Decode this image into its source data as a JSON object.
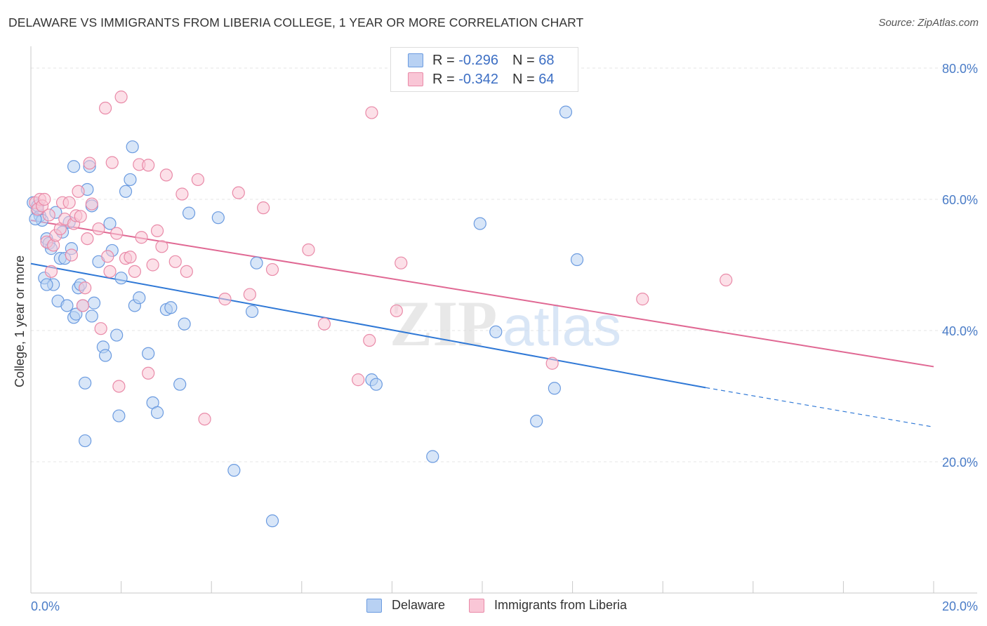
{
  "header": {
    "title": "DELAWARE VS IMMIGRANTS FROM LIBERIA COLLEGE, 1 YEAR OR MORE CORRELATION CHART",
    "source": "Source: ZipAtlas.com"
  },
  "legend_box": {
    "rows": [
      {
        "r_label": "R = ",
        "r_value": "-0.296",
        "n_label": "N = ",
        "n_value": "68"
      },
      {
        "r_label": "R = ",
        "r_value": "-0.342",
        "n_label": "N = ",
        "n_value": "64"
      }
    ]
  },
  "bottom_legend": [
    "Delaware",
    "Immigrants from Liberia"
  ],
  "watermark": {
    "zip": "ZIP",
    "atlas": "atlas"
  },
  "colors": {
    "delaware_fill": "#b8d1f3",
    "delaware_stroke": "#6b9be0",
    "delaware_line": "#2f78d6",
    "liberia_fill": "#f9c6d6",
    "liberia_stroke": "#e98aa8",
    "liberia_line": "#e06893",
    "tick_text": "#4a7cc7",
    "grid": "#e5e5e5"
  },
  "chart_data": {
    "type": "scatter",
    "title": "DELAWARE VS IMMIGRANTS FROM LIBERIA COLLEGE, 1 YEAR OR MORE CORRELATION CHART",
    "xlabel": "",
    "ylabel": "College, 1 year or more",
    "xlim": [
      0,
      20
    ],
    "ylim": [
      0,
      84
    ],
    "x_tick_labels": [
      "0.0%",
      "20.0%"
    ],
    "y_ticks": [
      20,
      40,
      60,
      80
    ],
    "y_tick_labels": [
      "20.0%",
      "40.0%",
      "60.0%",
      "80.0%"
    ],
    "grid": true,
    "legend_position": "top-center",
    "series": [
      {
        "name": "Delaware",
        "r": -0.296,
        "n": 68,
        "trend": {
          "x0": 0,
          "y0": 50.2,
          "x1": 14.95,
          "y1": 31.3,
          "dashed_to_x": 20,
          "dashed_to_y": 25.3
        },
        "points": [
          [
            0.05,
            59.5
          ],
          [
            0.15,
            58.3
          ],
          [
            0.2,
            57.5
          ],
          [
            0.25,
            56.8
          ],
          [
            0.3,
            48.0
          ],
          [
            0.35,
            54.0
          ],
          [
            0.4,
            53.3
          ],
          [
            0.45,
            52.5
          ],
          [
            0.5,
            47.0
          ],
          [
            0.55,
            58.0
          ],
          [
            0.6,
            44.5
          ],
          [
            0.65,
            51.0
          ],
          [
            0.7,
            55.0
          ],
          [
            0.75,
            51.0
          ],
          [
            0.8,
            43.8
          ],
          [
            0.85,
            56.5
          ],
          [
            0.9,
            52.5
          ],
          [
            0.95,
            42.0
          ],
          [
            1.0,
            42.5
          ],
          [
            1.05,
            46.5
          ],
          [
            1.1,
            47.0
          ],
          [
            1.15,
            43.8
          ],
          [
            1.2,
            32.0
          ],
          [
            1.25,
            61.5
          ],
          [
            1.3,
            65.0
          ],
          [
            1.35,
            59.0
          ],
          [
            1.4,
            44.2
          ],
          [
            1.5,
            50.5
          ],
          [
            1.6,
            37.5
          ],
          [
            1.65,
            36.2
          ],
          [
            1.75,
            56.3
          ],
          [
            1.8,
            52.2
          ],
          [
            1.9,
            39.3
          ],
          [
            1.95,
            27.0
          ],
          [
            2.0,
            48.0
          ],
          [
            2.1,
            61.2
          ],
          [
            2.2,
            63.0
          ],
          [
            2.25,
            68.0
          ],
          [
            2.3,
            43.8
          ],
          [
            2.4,
            45.0
          ],
          [
            2.6,
            36.5
          ],
          [
            2.7,
            29.0
          ],
          [
            2.8,
            27.5
          ],
          [
            3.0,
            43.2
          ],
          [
            3.1,
            43.5
          ],
          [
            3.3,
            31.8
          ],
          [
            3.4,
            41.0
          ],
          [
            3.5,
            57.9
          ],
          [
            4.15,
            57.2
          ],
          [
            4.5,
            18.7
          ],
          [
            4.9,
            42.9
          ],
          [
            5.0,
            50.3
          ],
          [
            5.35,
            11.0
          ],
          [
            7.55,
            32.5
          ],
          [
            7.65,
            31.8
          ],
          [
            8.9,
            20.8
          ],
          [
            9.95,
            56.3
          ],
          [
            10.3,
            39.8
          ],
          [
            11.2,
            26.2
          ],
          [
            11.6,
            31.2
          ],
          [
            11.85,
            73.3
          ],
          [
            12.1,
            50.8
          ],
          [
            0.1,
            57.0
          ],
          [
            0.35,
            47.0
          ],
          [
            1.2,
            23.2
          ],
          [
            0.95,
            65.0
          ],
          [
            1.35,
            42.2
          ],
          [
            0.15,
            59.0
          ]
        ]
      },
      {
        "name": "Immigrants from Liberia",
        "r": -0.342,
        "n": 64,
        "trend": {
          "x0": 0,
          "y0": 56.8,
          "x1": 20,
          "y1": 34.5
        },
        "points": [
          [
            0.1,
            59.5
          ],
          [
            0.15,
            58.5
          ],
          [
            0.2,
            60.0
          ],
          [
            0.25,
            59.0
          ],
          [
            0.3,
            60.0
          ],
          [
            0.35,
            53.5
          ],
          [
            0.4,
            57.6
          ],
          [
            0.45,
            49.0
          ],
          [
            0.5,
            53.0
          ],
          [
            0.55,
            54.5
          ],
          [
            0.65,
            55.5
          ],
          [
            0.7,
            59.5
          ],
          [
            0.75,
            57.0
          ],
          [
            0.85,
            59.5
          ],
          [
            0.9,
            51.5
          ],
          [
            0.95,
            56.3
          ],
          [
            1.0,
            57.5
          ],
          [
            1.05,
            61.2
          ],
          [
            1.1,
            57.4
          ],
          [
            1.15,
            43.8
          ],
          [
            1.2,
            46.5
          ],
          [
            1.25,
            54.0
          ],
          [
            1.3,
            65.5
          ],
          [
            1.35,
            59.3
          ],
          [
            1.5,
            55.5
          ],
          [
            1.55,
            40.3
          ],
          [
            1.65,
            73.9
          ],
          [
            1.7,
            51.3
          ],
          [
            1.75,
            49.0
          ],
          [
            1.8,
            65.6
          ],
          [
            1.9,
            54.8
          ],
          [
            1.95,
            31.5
          ],
          [
            2.0,
            75.6
          ],
          [
            2.1,
            51.0
          ],
          [
            2.2,
            51.2
          ],
          [
            2.3,
            49.0
          ],
          [
            2.4,
            65.3
          ],
          [
            2.45,
            54.2
          ],
          [
            2.6,
            65.2
          ],
          [
            2.7,
            50.0
          ],
          [
            2.8,
            55.2
          ],
          [
            2.9,
            52.8
          ],
          [
            3.0,
            63.7
          ],
          [
            3.2,
            50.5
          ],
          [
            3.35,
            60.8
          ],
          [
            3.45,
            49.0
          ],
          [
            3.7,
            63.0
          ],
          [
            3.85,
            26.5
          ],
          [
            4.3,
            44.8
          ],
          [
            4.6,
            61.0
          ],
          [
            4.85,
            45.5
          ],
          [
            5.15,
            58.7
          ],
          [
            5.35,
            49.3
          ],
          [
            6.15,
            52.3
          ],
          [
            6.5,
            41.0
          ],
          [
            7.25,
            32.5
          ],
          [
            7.5,
            38.5
          ],
          [
            7.55,
            73.2
          ],
          [
            8.1,
            43.0
          ],
          [
            8.2,
            50.3
          ],
          [
            11.55,
            35.0
          ],
          [
            13.55,
            44.8
          ],
          [
            15.4,
            47.7
          ],
          [
            2.6,
            33.5
          ]
        ]
      }
    ]
  }
}
